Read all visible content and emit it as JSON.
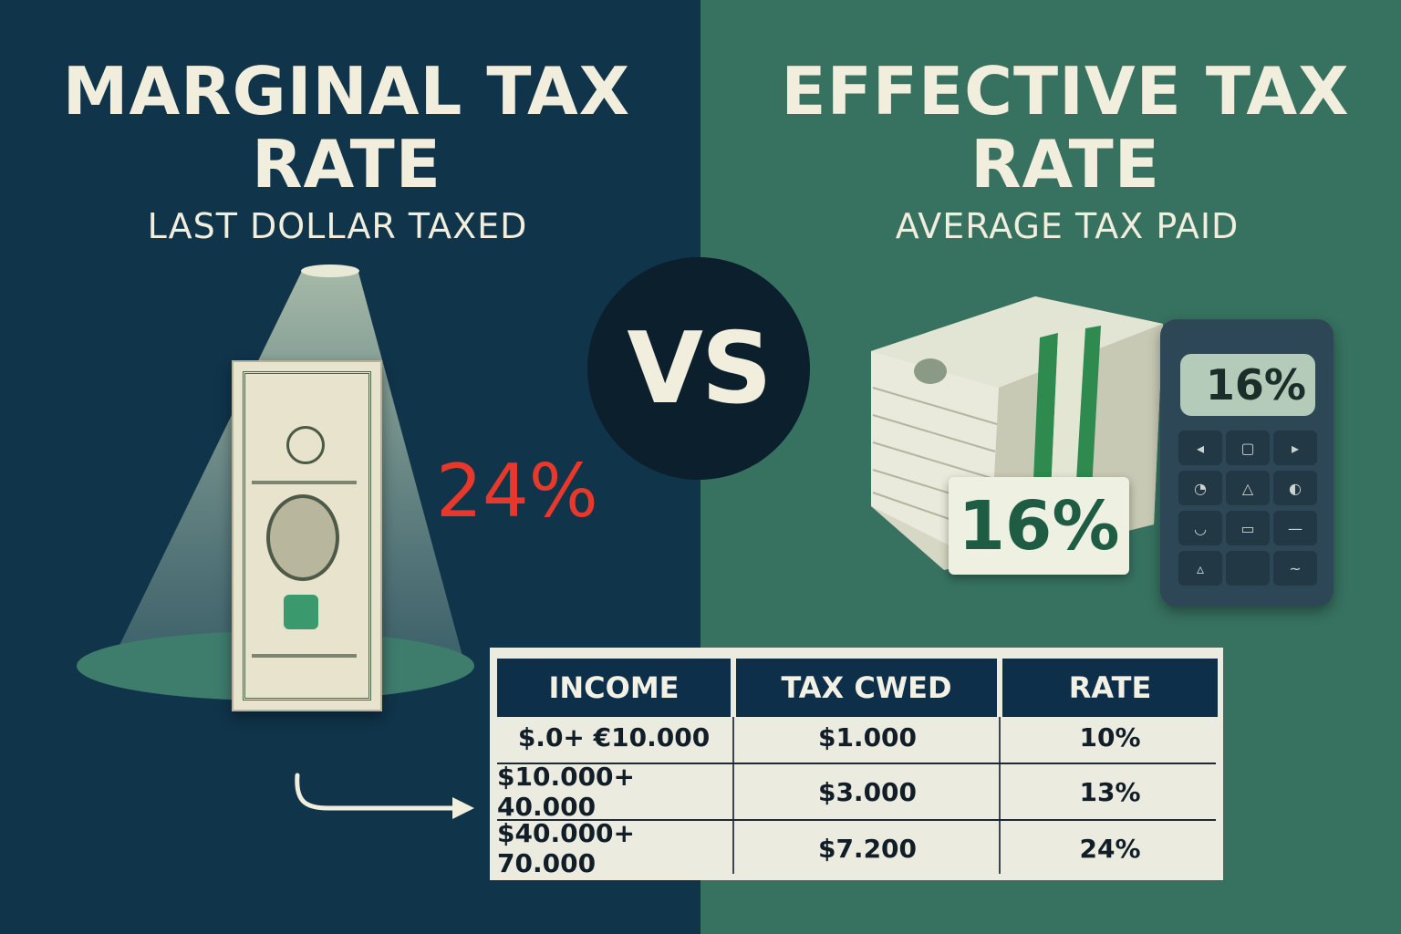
{
  "left": {
    "title": "MARGINAL TAX RATE",
    "subtitle": "LAST DOLLAR TAXED",
    "rate": "24%",
    "rate_color": "#e8382b",
    "background": "#10344a"
  },
  "right": {
    "title": "EFFECTIVE TAX RATE",
    "subtitle": "AVERAGE TAX PAID",
    "label_rate": "16%",
    "calculator_display": "16%",
    "background": "#37715f"
  },
  "vs": "VS",
  "icons": [
    "spotlight-icon",
    "dollar-bill-icon",
    "money-stack-icon",
    "calculator-icon",
    "arrow-right-icon"
  ],
  "table": {
    "headers": [
      "INCOME",
      "TAX CWED",
      "RATE"
    ],
    "rows": [
      {
        "income": "$.0+ €10.000",
        "tax": "$1.000",
        "rate": "10%"
      },
      {
        "income": "$10.000+ 40.000",
        "tax": "$3.000",
        "rate": "13%"
      },
      {
        "income": "$40.000+ 70.000",
        "tax": "$7.200",
        "rate": "24%"
      }
    ],
    "header_color": "#0d2f4a"
  }
}
